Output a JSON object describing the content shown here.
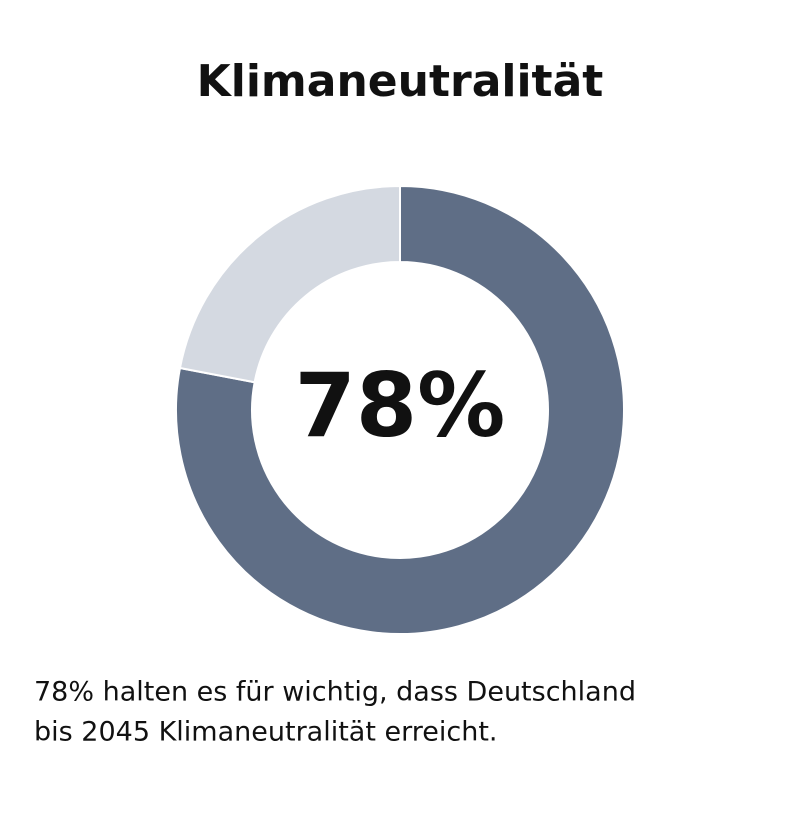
{
  "chart_data": {
    "type": "donut",
    "title": "Klimaneutralität",
    "values": [
      78,
      22
    ],
    "value_labels": [
      "78%",
      null
    ],
    "colors": [
      "#5f6e86",
      "#d4d9e1"
    ],
    "caption": [
      "78% halten es für wichtig, dass Deutschland",
      "bis 2045 Klimaneutralität erreicht."
    ]
  }
}
